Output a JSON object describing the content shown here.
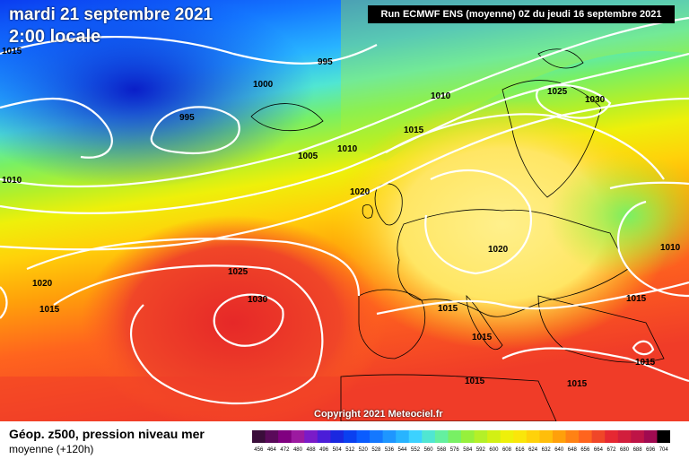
{
  "header": {
    "date": "mardi 21 septembre 2021",
    "local_time": "2:00 locale",
    "run_info": "Run ECMWF ENS (moyenne) 0Z du jeudi 16 septembre 2021"
  },
  "copyright": "Copyright 2021 Meteociel.fr",
  "footer": {
    "title": "Géop. z500, pression niveau mer",
    "subtitle": "moyenne   (+120h)"
  },
  "isobar_labels": [
    {
      "text": "1015"
    },
    {
      "text": "1010"
    },
    {
      "text": "995"
    },
    {
      "text": "1000"
    },
    {
      "text": "995"
    },
    {
      "text": "1005"
    },
    {
      "text": "1010"
    },
    {
      "text": "1010"
    },
    {
      "text": "1015"
    },
    {
      "text": "1025"
    },
    {
      "text": "1030"
    },
    {
      "text": "1020"
    },
    {
      "text": "1010"
    },
    {
      "text": "1020"
    },
    {
      "text": "1010"
    },
    {
      "text": "1015"
    },
    {
      "text": "1025"
    },
    {
      "text": "1030"
    },
    {
      "text": "1020"
    },
    {
      "text": "1015"
    },
    {
      "text": "1015"
    },
    {
      "text": "1015"
    },
    {
      "text": "1015"
    },
    {
      "text": "1015"
    },
    {
      "text": "1015"
    },
    {
      "text": "1015"
    },
    {
      "text": "1015"
    }
  ],
  "scale": {
    "values": [
      "456",
      "464",
      "472",
      "480",
      "488",
      "496",
      "504",
      "512",
      "520",
      "528",
      "536",
      "544",
      "552",
      "560",
      "568",
      "576",
      "584",
      "592",
      "600",
      "608",
      "616",
      "624",
      "632",
      "640",
      "648",
      "656",
      "664",
      "672",
      "680",
      "688",
      "696",
      "704"
    ],
    "colors": [
      "#3a0d3a",
      "#5a0a5a",
      "#800080",
      "#9c1aa0",
      "#7a1bc8",
      "#4b1dd8",
      "#1a28e0",
      "#0a40f0",
      "#0a5cff",
      "#1478ff",
      "#1e96ff",
      "#28b4ff",
      "#3cd2ff",
      "#50e6d2",
      "#64f0a0",
      "#78f064",
      "#96f03c",
      "#b4f028",
      "#d2f014",
      "#eef00a",
      "#fae60a",
      "#ffd20a",
      "#ffbe0a",
      "#ffa00a",
      "#ff8214",
      "#ff641e",
      "#f04628",
      "#e62832",
      "#d21e3c",
      "#be1446",
      "#a00a50",
      "#000000"
    ]
  }
}
